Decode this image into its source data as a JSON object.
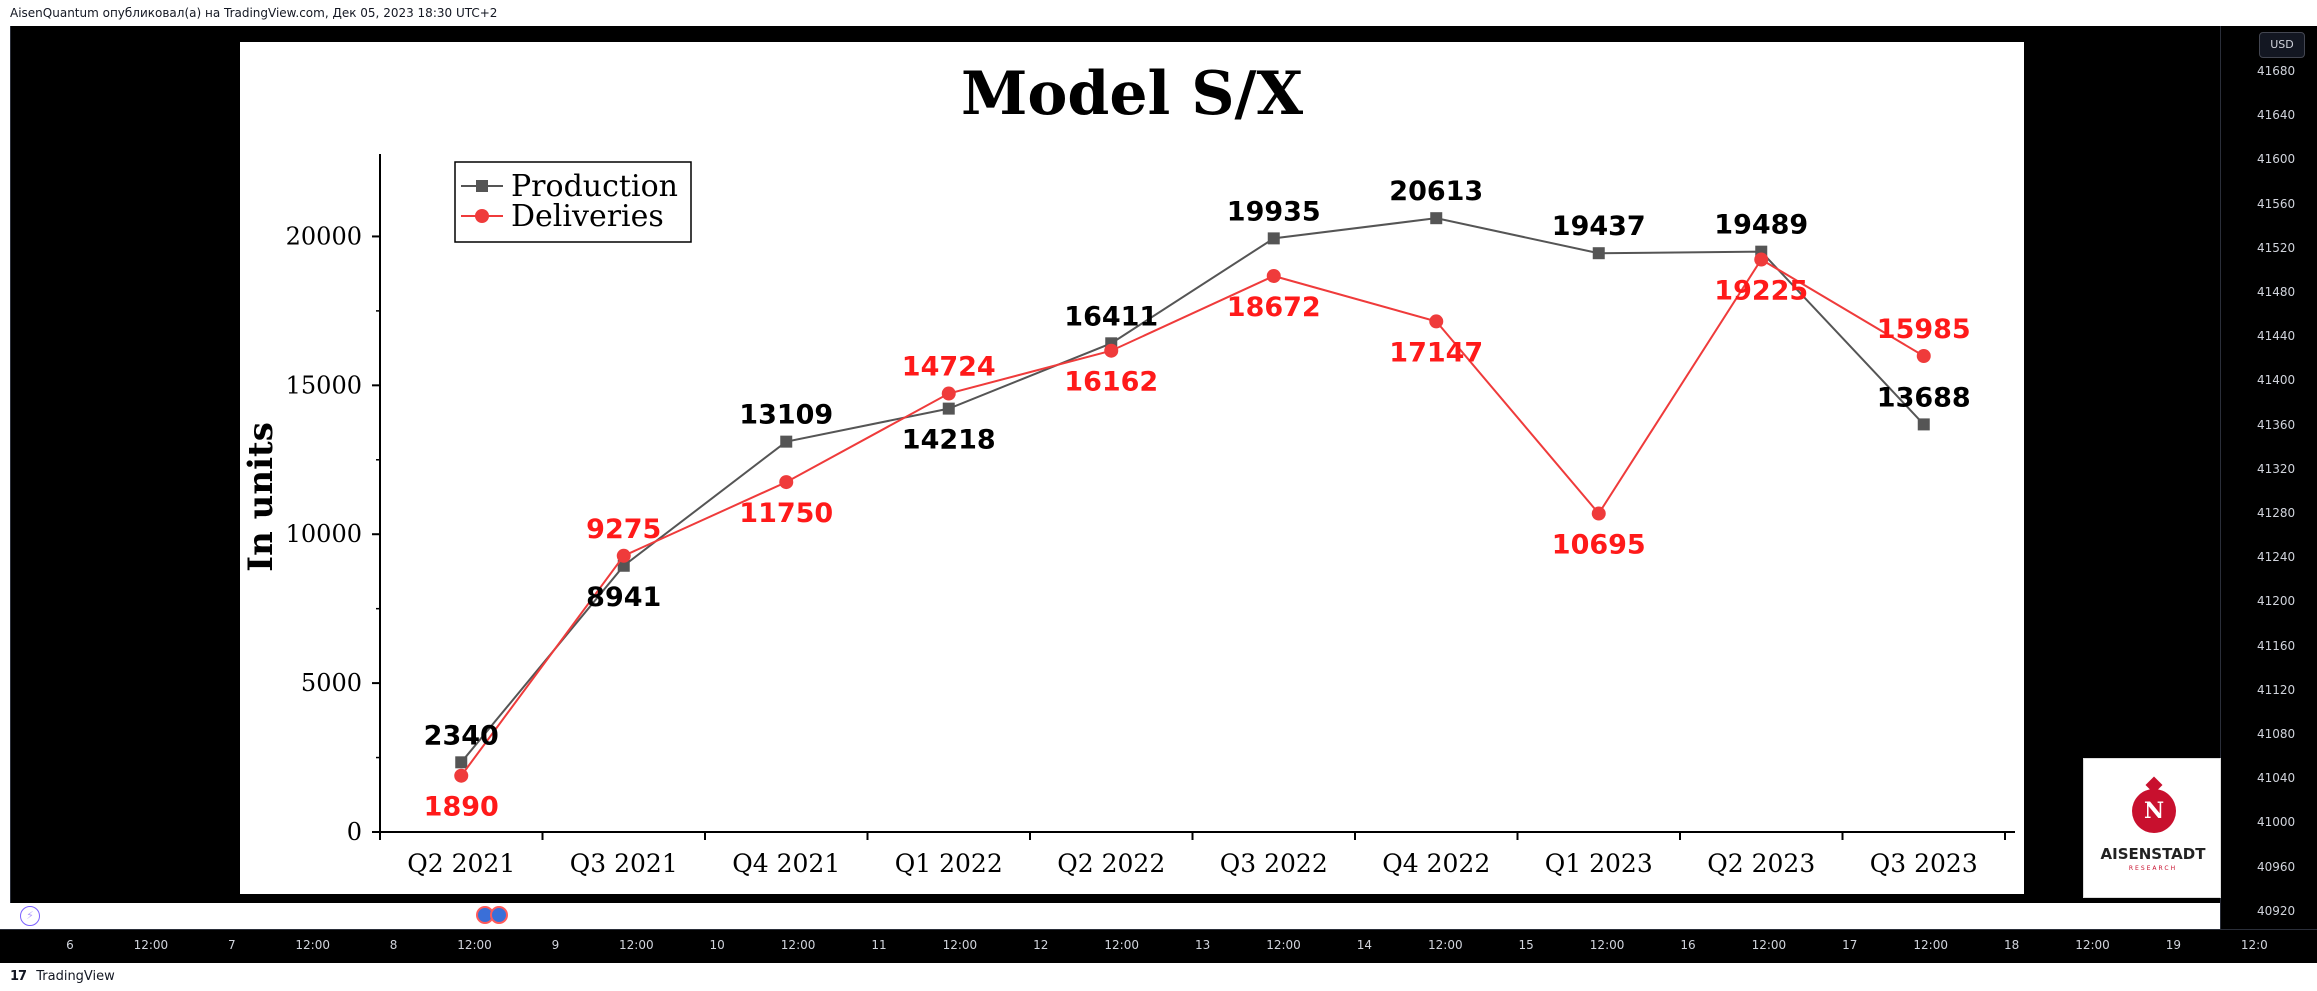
{
  "header": {
    "attribution": "AisenQuantum опубликовал(а) на TradingView.com, Дек 05, 2023 18:30 UTC+2"
  },
  "footer": {
    "brand_logo": "17",
    "brand_name": "TradingView"
  },
  "price_scale": {
    "currency": "USD",
    "ticks": [
      "41680",
      "41640",
      "41600",
      "41560",
      "41520",
      "41480",
      "41440",
      "41400",
      "41360",
      "41320",
      "41280",
      "41240",
      "41200",
      "41160",
      "41120",
      "41080",
      "41040",
      "41000",
      "40960",
      "40920"
    ]
  },
  "time_axis": {
    "ticks": [
      "6",
      "12:00",
      "7",
      "12:00",
      "8",
      "12:00",
      "9",
      "12:00",
      "10",
      "12:00",
      "11",
      "12:00",
      "12",
      "12:00",
      "13",
      "12:00",
      "14",
      "12:00",
      "15",
      "12:00",
      "16",
      "12:00",
      "17",
      "12:00",
      "18",
      "12:00",
      "19",
      "12:0"
    ]
  },
  "logo": {
    "mark": "N",
    "name": "AISENSTADT",
    "sub": "RESEARCH"
  },
  "icons": {
    "replay": "lightning-icon",
    "event": "flag-icon"
  },
  "chart_data": {
    "type": "line",
    "title": "Model S/X",
    "xlabel": "",
    "ylabel": "In units",
    "ylim": [
      0,
      22500
    ],
    "yticks": [
      0,
      5000,
      10000,
      15000,
      20000
    ],
    "grid": false,
    "legend_position": "top-left",
    "categories": [
      "Q2 2021",
      "Q3 2021",
      "Q4 2021",
      "Q1 2022",
      "Q2 2022",
      "Q3 2022",
      "Q4 2022",
      "Q1 2023",
      "Q2 2023",
      "Q3 2023"
    ],
    "series": [
      {
        "name": "Production",
        "color": "#555555",
        "label_color": "#000000",
        "marker": "square",
        "values": [
          2340,
          8941,
          13109,
          14218,
          16411,
          19935,
          20613,
          19437,
          19489,
          13688
        ],
        "label_pos": [
          "above",
          "below",
          "above",
          "below",
          "above",
          "above",
          "above",
          "above",
          "above",
          "above"
        ]
      },
      {
        "name": "Deliveries",
        "color": "#ef3b3b",
        "label_color": "#ff1a1a",
        "marker": "circle",
        "values": [
          1890,
          9275,
          11750,
          14724,
          16162,
          18672,
          17147,
          10695,
          19225,
          15985
        ],
        "label_pos": [
          "below",
          "above",
          "below",
          "above",
          "below",
          "below",
          "below",
          "below",
          "below",
          "above"
        ]
      }
    ]
  }
}
